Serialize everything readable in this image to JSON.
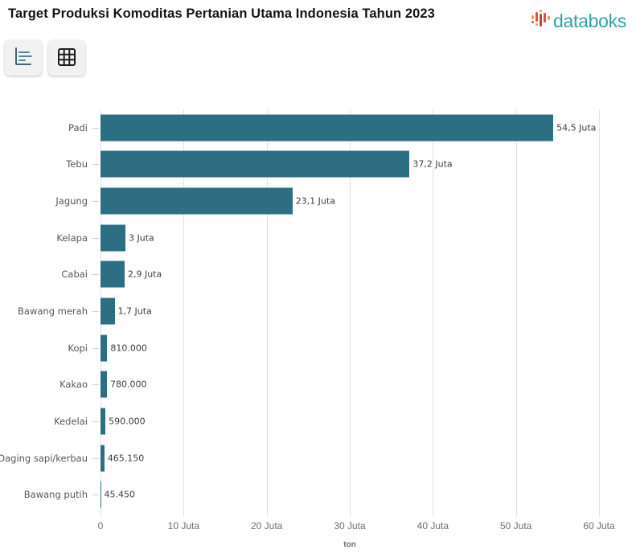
{
  "header": {
    "title": "Target Produksi Komoditas Pertanian Utama Indonesia Tahun 2023",
    "logo_text": "databoks",
    "logo_icon": "databoks-pulse-bars-icon",
    "logo_color": "#2fa3a8",
    "logo_icon_colors": {
      "red": "#dd5145",
      "orange": "#f29b4a",
      "dark_red": "#c2473c"
    }
  },
  "toolbar": {
    "buttons": [
      {
        "name": "chart-view",
        "icon": "horizontal-bar-chart-icon"
      },
      {
        "name": "table-view",
        "icon": "table-grid-icon"
      }
    ]
  },
  "chart_data": {
    "type": "bar",
    "orientation": "horizontal",
    "title": "Target Produksi Komoditas Pertanian Utama Indonesia Tahun 2023",
    "categories": [
      "Padi",
      "Tebu",
      "Jagung",
      "Kelapa",
      "Cabai",
      "Bawang merah",
      "Kopi",
      "Kakao",
      "Kedelai",
      "Daging sapi/kerbau",
      "Bawang putih"
    ],
    "values": [
      54500000,
      37200000,
      23100000,
      3000000,
      2900000,
      1700000,
      810000,
      780000,
      590000,
      465150,
      45450
    ],
    "value_labels": [
      "54,5 Juta",
      "37,2 Juta",
      "23,1 Juta",
      "3 Juta",
      "2,9 Juta",
      "1,7 Juta",
      "810.000",
      "780.000",
      "590.000",
      "465.150",
      "45.450"
    ],
    "x_ticks": [
      "0",
      "10 Juta",
      "20 Juta",
      "30 Juta",
      "40 Juta",
      "50 Juta",
      "60 Juta"
    ],
    "x_tick_values": [
      0,
      10000000,
      20000000,
      30000000,
      40000000,
      50000000,
      60000000
    ],
    "xlim": [
      0,
      60000000
    ],
    "xlabel": "ton",
    "ylabel": "",
    "bar_color": "#2e6e83",
    "grid": true,
    "legend": "none"
  }
}
